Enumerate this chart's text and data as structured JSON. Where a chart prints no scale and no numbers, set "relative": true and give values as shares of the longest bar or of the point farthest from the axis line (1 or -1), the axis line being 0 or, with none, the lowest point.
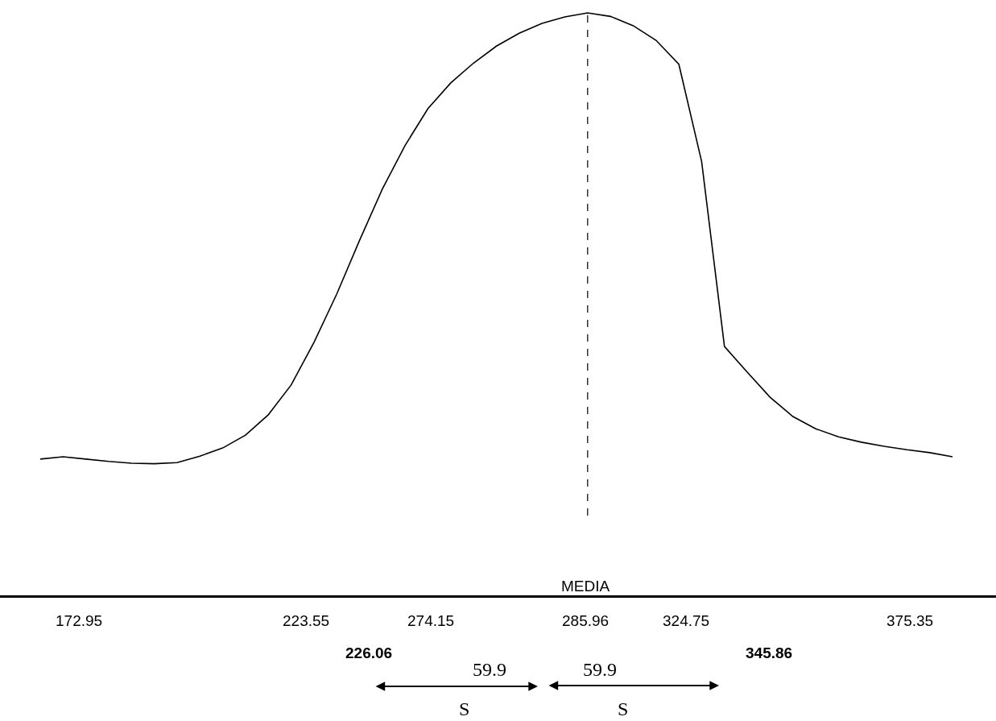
{
  "chart_data": {
    "type": "line",
    "relative": true,
    "color": "#000000",
    "marker": "none",
    "line_style": "solid",
    "categories": [
      null,
      null,
      null,
      null,
      null,
      null,
      null,
      null,
      null,
      null,
      null,
      null,
      null,
      null,
      null,
      null,
      null,
      null,
      null,
      null,
      null,
      null,
      null,
      null,
      null,
      null,
      null,
      null,
      null,
      null,
      null,
      null,
      null,
      null,
      null,
      null,
      null,
      null,
      null,
      null,
      null
    ],
    "values": [
      0.235,
      0.239,
      0.235,
      0.231,
      0.228,
      0.227,
      0.229,
      0.24,
      0.254,
      0.276,
      0.311,
      0.362,
      0.435,
      0.518,
      0.61,
      0.698,
      0.773,
      0.836,
      0.88,
      0.914,
      0.943,
      0.965,
      0.982,
      0.993,
      1,
      0.994,
      0.978,
      0.953,
      0.912,
      0.745,
      0.428,
      0.384,
      0.341,
      0.308,
      0.287,
      0.273,
      0.264,
      0.257,
      0.251,
      0.246,
      0.239
    ],
    "annotations": [
      "MEDIA",
      "172.95",
      "223.55",
      "274.15",
      "285.96",
      "324.75",
      "375.35",
      "226.06",
      "345.86",
      "59.9",
      "59.9",
      "S",
      "S"
    ]
  }
}
